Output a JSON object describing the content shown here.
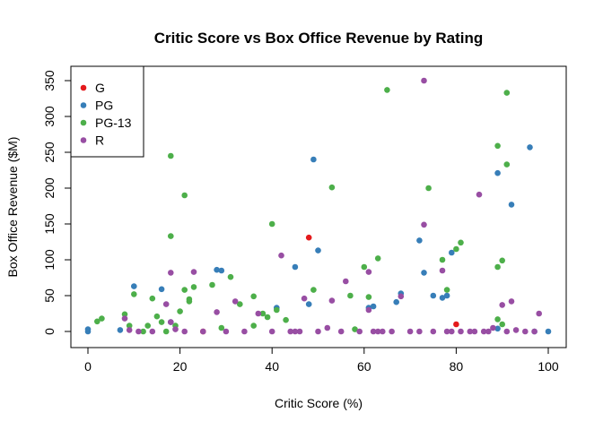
{
  "chart_data": {
    "type": "scatter",
    "title": "Critic Score vs Box Office Revenue by Rating",
    "xlabel": "Critic Score (%)",
    "ylabel": "Box Office Revenue ($M)",
    "xlim": [
      0,
      100
    ],
    "ylim": [
      0,
      350
    ],
    "xticks": [
      0,
      20,
      40,
      60,
      80,
      100
    ],
    "yticks": [
      0,
      50,
      100,
      150,
      200,
      250,
      300,
      350
    ],
    "grid": false,
    "legend_position": "top-left",
    "series": [
      {
        "name": "G",
        "color": "#e41a1c",
        "points": [
          [
            25,
            0
          ],
          [
            48,
            131
          ],
          [
            80,
            10
          ]
        ]
      },
      {
        "name": "PG",
        "color": "#377eb8",
        "points": [
          [
            0,
            0
          ],
          [
            0,
            3
          ],
          [
            7,
            2
          ],
          [
            10,
            63
          ],
          [
            16,
            59
          ],
          [
            18,
            13
          ],
          [
            28,
            86
          ],
          [
            29,
            85
          ],
          [
            41,
            33
          ],
          [
            45,
            90
          ],
          [
            48,
            38
          ],
          [
            49,
            240
          ],
          [
            50,
            113
          ],
          [
            61,
            33
          ],
          [
            62,
            35
          ],
          [
            67,
            41
          ],
          [
            68,
            53
          ],
          [
            72,
            127
          ],
          [
            73,
            82
          ],
          [
            75,
            50
          ],
          [
            77,
            47
          ],
          [
            78,
            50
          ],
          [
            79,
            110
          ],
          [
            89,
            221
          ],
          [
            89,
            4
          ],
          [
            92,
            177
          ],
          [
            96,
            257
          ],
          [
            97,
            0
          ],
          [
            100,
            0
          ]
        ]
      },
      {
        "name": "PG-13",
        "color": "#4daf4a",
        "points": [
          [
            2,
            14
          ],
          [
            3,
            18
          ],
          [
            8,
            24
          ],
          [
            9,
            8
          ],
          [
            10,
            52
          ],
          [
            12,
            0
          ],
          [
            13,
            8
          ],
          [
            14,
            46
          ],
          [
            15,
            21
          ],
          [
            16,
            13
          ],
          [
            17,
            0
          ],
          [
            18,
            245
          ],
          [
            18,
            133
          ],
          [
            19,
            8
          ],
          [
            20,
            28
          ],
          [
            21,
            190
          ],
          [
            21,
            58
          ],
          [
            22,
            45
          ],
          [
            22,
            42
          ],
          [
            23,
            62
          ],
          [
            27,
            65
          ],
          [
            29,
            5
          ],
          [
            31,
            76
          ],
          [
            33,
            38
          ],
          [
            36,
            8
          ],
          [
            36,
            49
          ],
          [
            38,
            25
          ],
          [
            39,
            20
          ],
          [
            40,
            150
          ],
          [
            41,
            30
          ],
          [
            43,
            16
          ],
          [
            49,
            58
          ],
          [
            53,
            201
          ],
          [
            57,
            50
          ],
          [
            58,
            3
          ],
          [
            60,
            90
          ],
          [
            61,
            48
          ],
          [
            63,
            102
          ],
          [
            65,
            337
          ],
          [
            74,
            200
          ],
          [
            77,
            100
          ],
          [
            78,
            58
          ],
          [
            80,
            115
          ],
          [
            81,
            124
          ],
          [
            89,
            259
          ],
          [
            89,
            90
          ],
          [
            89,
            17
          ],
          [
            90,
            99
          ],
          [
            91,
            333
          ],
          [
            91,
            233
          ],
          [
            90,
            10
          ]
        ]
      },
      {
        "name": "R",
        "color": "#984ea3",
        "points": [
          [
            8,
            18
          ],
          [
            9,
            2
          ],
          [
            11,
            0
          ],
          [
            14,
            0
          ],
          [
            17,
            38
          ],
          [
            18,
            82
          ],
          [
            18,
            13
          ],
          [
            19,
            3
          ],
          [
            21,
            0
          ],
          [
            23,
            83
          ],
          [
            25,
            0
          ],
          [
            28,
            27
          ],
          [
            30,
            0
          ],
          [
            32,
            42
          ],
          [
            34,
            0
          ],
          [
            37,
            25
          ],
          [
            40,
            0
          ],
          [
            42,
            106
          ],
          [
            44,
            0
          ],
          [
            45,
            0
          ],
          [
            46,
            0
          ],
          [
            47,
            46
          ],
          [
            50,
            0
          ],
          [
            52,
            5
          ],
          [
            53,
            43
          ],
          [
            55,
            0
          ],
          [
            56,
            70
          ],
          [
            59,
            0
          ],
          [
            61,
            83
          ],
          [
            61,
            30
          ],
          [
            62,
            0
          ],
          [
            63,
            0
          ],
          [
            64,
            0
          ],
          [
            66,
            0
          ],
          [
            68,
            49
          ],
          [
            70,
            0
          ],
          [
            72,
            0
          ],
          [
            73,
            350
          ],
          [
            73,
            149
          ],
          [
            75,
            0
          ],
          [
            77,
            85
          ],
          [
            78,
            0
          ],
          [
            79,
            0
          ],
          [
            81,
            0
          ],
          [
            83,
            0
          ],
          [
            84,
            0
          ],
          [
            85,
            191
          ],
          [
            86,
            0
          ],
          [
            87,
            0
          ],
          [
            88,
            5
          ],
          [
            90,
            37
          ],
          [
            91,
            0
          ],
          [
            92,
            42
          ],
          [
            93,
            2
          ],
          [
            95,
            0
          ],
          [
            97,
            0
          ],
          [
            98,
            25
          ]
        ]
      }
    ]
  }
}
